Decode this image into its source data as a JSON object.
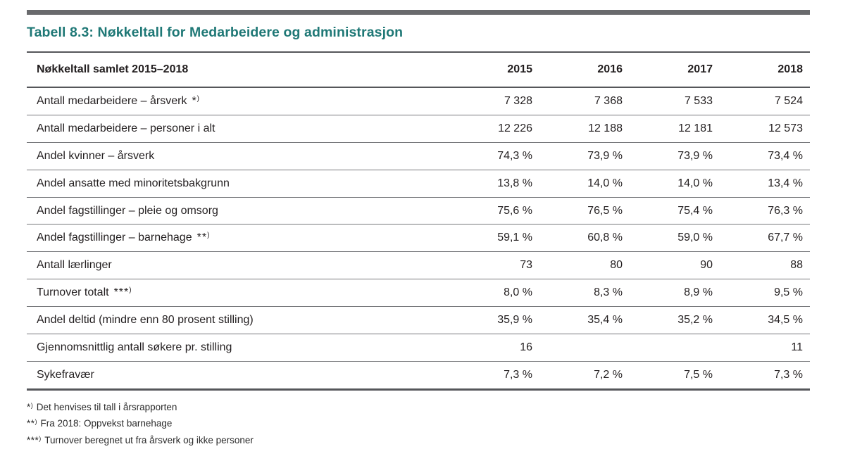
{
  "colors": {
    "title_teal": "#1f7876",
    "top_bar_gray": "#696a6d",
    "heavy_rule": "#55565a",
    "light_rule": "#77787b",
    "text": "#231f20"
  },
  "page": {
    "title": "Tabell 8.3: Nøkkeltall for Medarbeidere og administrasjon"
  },
  "table": {
    "header": {
      "label": "Nøkkeltall samlet 2015–2018",
      "years": [
        "2015",
        "2016",
        "2017",
        "2018"
      ]
    },
    "rows": [
      {
        "label": "Antall medarbeidere – årsverk",
        "marker": "*)",
        "values": [
          "7 328",
          "7 368",
          "7 533",
          "7 524"
        ]
      },
      {
        "label": "Antall medarbeidere – personer i alt",
        "marker": "",
        "values": [
          "12 226",
          "12 188",
          "12 181",
          "12 573"
        ]
      },
      {
        "label": "Andel kvinner – årsverk",
        "marker": "",
        "values": [
          "74,3 %",
          "73,9 %",
          "73,9 %",
          "73,4 %"
        ]
      },
      {
        "label": "Andel ansatte med minoritetsbakgrunn",
        "marker": "",
        "values": [
          "13,8 %",
          "14,0 %",
          "14,0 %",
          "13,4 %"
        ]
      },
      {
        "label": "Andel fagstillinger – pleie og omsorg",
        "marker": "",
        "values": [
          "75,6 %",
          "76,5 %",
          "75,4 %",
          "76,3 %"
        ]
      },
      {
        "label": "Andel fagstillinger – barnehage",
        "marker": "**)",
        "values": [
          "59,1 %",
          "60,8 %",
          "59,0 %",
          "67,7 %"
        ]
      },
      {
        "label": "Antall lærlinger",
        "marker": "",
        "values": [
          "73",
          "80",
          "90",
          "88"
        ]
      },
      {
        "label": "Turnover totalt",
        "marker": "***)",
        "values": [
          "8,0 %",
          "8,3 %",
          "8,9 %",
          "9,5 %"
        ]
      },
      {
        "label": "Andel deltid (mindre enn 80 prosent stilling)",
        "marker": "",
        "values": [
          "35,9 %",
          "35,4 %",
          "35,2 %",
          "34,5 %"
        ]
      },
      {
        "label": "Gjennomsnittlig antall søkere pr. stilling",
        "marker": "",
        "values": [
          "16",
          "",
          "",
          "11"
        ]
      },
      {
        "label": "Sykefravær",
        "marker": "",
        "values": [
          "7,3 %",
          "7,2 %",
          "7,5 %",
          "7,3 %"
        ]
      }
    ]
  },
  "footnotes": [
    {
      "marker": "*)",
      "text": "Det henvises til tall i årsrapporten"
    },
    {
      "marker": "**)",
      "text": "Fra 2018: Oppvekst barnehage"
    },
    {
      "marker": "***)",
      "text": "Turnover beregnet ut fra årsverk og ikke personer"
    }
  ],
  "chart_data": {
    "type": "table",
    "title": "Tabell 8.3: Nøkkeltall for Medarbeidere og administrasjon",
    "columns": [
      "Nøkkeltall samlet 2015–2018",
      "2015",
      "2016",
      "2017",
      "2018"
    ],
    "rows": [
      [
        "Antall medarbeidere – årsverk *)",
        "7 328",
        "7 368",
        "7 533",
        "7 524"
      ],
      [
        "Antall medarbeidere – personer i alt",
        "12 226",
        "12 188",
        "12 181",
        "12 573"
      ],
      [
        "Andel kvinner – årsverk",
        "74,3 %",
        "73,9 %",
        "73,9 %",
        "73,4 %"
      ],
      [
        "Andel ansatte med minoritetsbakgrunn",
        "13,8 %",
        "14,0 %",
        "14,0 %",
        "13,4 %"
      ],
      [
        "Andel fagstillinger – pleie og omsorg",
        "75,6 %",
        "76,5 %",
        "75,4 %",
        "76,3 %"
      ],
      [
        "Andel fagstillinger – barnehage **)",
        "59,1 %",
        "60,8 %",
        "59,0 %",
        "67,7 %"
      ],
      [
        "Antall lærlinger",
        "73",
        "80",
        "90",
        "88"
      ],
      [
        "Turnover totalt ***)",
        "8,0 %",
        "8,3 %",
        "8,9 %",
        "9,5 %"
      ],
      [
        "Andel deltid (mindre enn 80 prosent stilling)",
        "35,9 %",
        "35,4 %",
        "35,2 %",
        "34,5 %"
      ],
      [
        "Gjennomsnittlig antall søkere pr. stilling",
        "16",
        "",
        "",
        "11"
      ],
      [
        "Sykefravær",
        "7,3 %",
        "7,2 %",
        "7,5 %",
        "7,3 %"
      ]
    ]
  }
}
